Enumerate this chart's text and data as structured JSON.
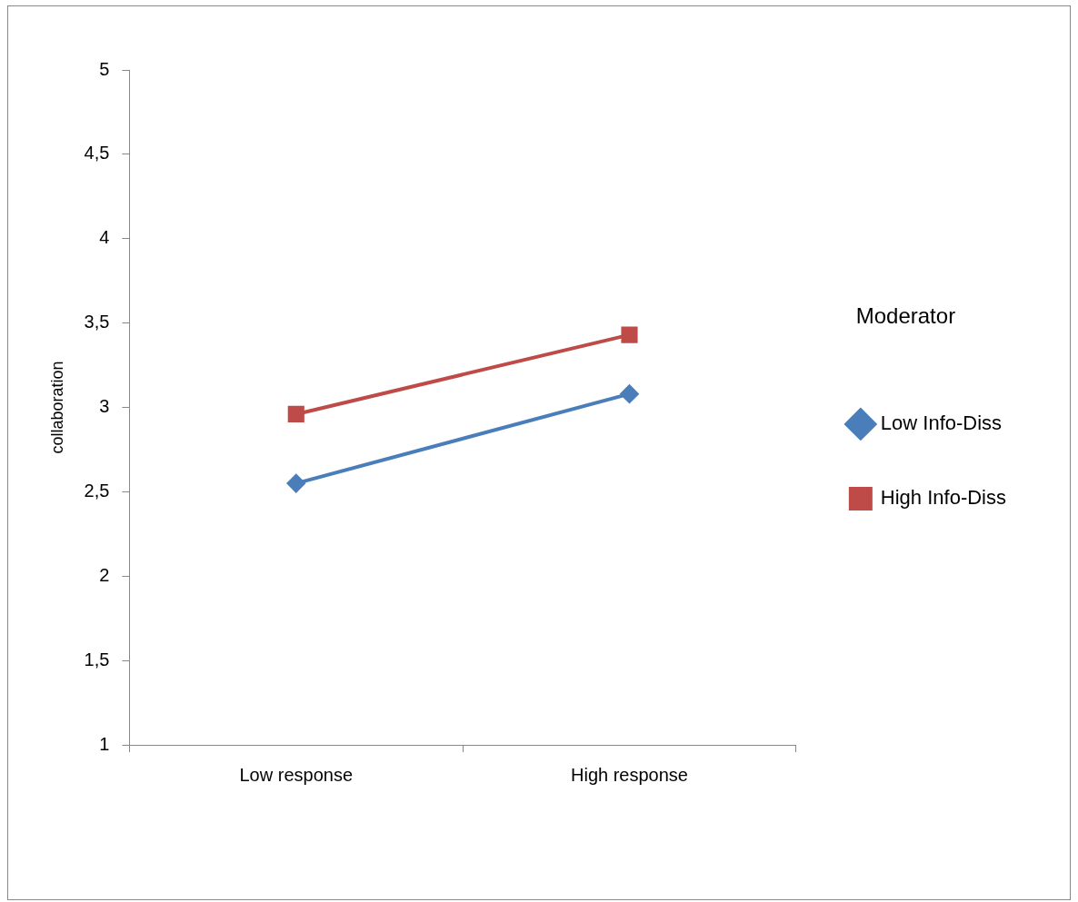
{
  "chart_data": {
    "type": "line",
    "ylabel": "collaboration",
    "legend_title": "Moderator",
    "legend": "right",
    "grid": false,
    "categories": [
      "Low response",
      "High response"
    ],
    "series": [
      {
        "name": "Low Info-Diss",
        "color": "#4a7ebb",
        "marker": "diamond",
        "values": [
          2.55,
          3.08
        ]
      },
      {
        "name": "High Info-Diss",
        "color": "#be4b48",
        "marker": "square",
        "values": [
          2.96,
          3.43
        ]
      }
    ],
    "ylim": [
      1,
      5
    ],
    "yticks": [
      1,
      {
        "value": 1.5,
        "label": "1,5"
      },
      2,
      {
        "value": 2.5,
        "label": "2,5"
      },
      3,
      {
        "value": 3.5,
        "label": "3,5"
      },
      4,
      {
        "value": 4.5,
        "label": "4,5"
      },
      5
    ],
    "line_style": "solid"
  }
}
